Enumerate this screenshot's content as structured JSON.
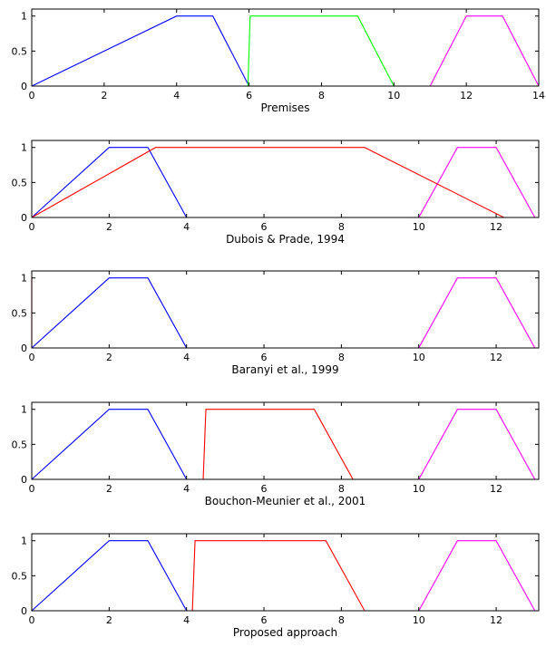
{
  "chart_data": [
    {
      "type": "line",
      "xlabel": "Premises",
      "xlim": [
        0,
        14
      ],
      "ylim": [
        0,
        1.1
      ],
      "xticks": [
        0,
        2,
        4,
        6,
        8,
        10,
        12,
        14
      ],
      "yticks": [
        0,
        0.5,
        1
      ],
      "xtick_labels": [
        "0",
        "2",
        "4",
        "6",
        "8",
        "10",
        "12",
        "14"
      ],
      "ytick_labels": [
        "0",
        "0.5",
        "1"
      ],
      "series": [
        {
          "color": "#0000ff",
          "x": [
            0,
            4,
            5,
            6,
            14
          ],
          "y": [
            0,
            1,
            1,
            0,
            0
          ]
        },
        {
          "color": "#00ff00",
          "x": [
            0,
            5.97,
            6.03,
            9,
            10,
            14
          ],
          "y": [
            0,
            0,
            1,
            1,
            0,
            0
          ]
        },
        {
          "color": "#ff00ff",
          "x": [
            0,
            11,
            12,
            13,
            14
          ],
          "y": [
            0,
            0,
            1,
            1,
            0
          ]
        }
      ]
    },
    {
      "type": "line",
      "xlabel": "Dubois & Prade, 1994",
      "xlim": [
        0,
        13.1
      ],
      "ylim": [
        0,
        1.1
      ],
      "xticks": [
        0,
        2,
        4,
        6,
        8,
        10,
        12
      ],
      "yticks": [
        0,
        0.5,
        1
      ],
      "xtick_labels": [
        "0",
        "2",
        "4",
        "6",
        "8",
        "10",
        "12"
      ],
      "ytick_labels": [
        "0",
        "0.5",
        "1"
      ],
      "series": [
        {
          "color": "#0000ff",
          "x": [
            0,
            2,
            3,
            4,
            13.1
          ],
          "y": [
            0,
            1,
            1,
            0,
            0
          ]
        },
        {
          "color": "#ff00ff",
          "x": [
            0,
            10,
            11,
            12,
            13
          ],
          "y": [
            0,
            0,
            1,
            1,
            0
          ]
        },
        {
          "color": "#ff0000",
          "x": [
            0,
            3.2,
            8.6,
            12.2
          ],
          "y": [
            0,
            1,
            1,
            0
          ]
        }
      ]
    },
    {
      "type": "line",
      "xlabel": "Baranyi et al., 1999",
      "xlim": [
        0,
        13.1
      ],
      "ylim": [
        0,
        1.1
      ],
      "xticks": [
        0,
        2,
        4,
        6,
        8,
        10,
        12
      ],
      "yticks": [
        0,
        0.5,
        1
      ],
      "xtick_labels": [
        "0",
        "2",
        "4",
        "6",
        "8",
        "10",
        "12"
      ],
      "ytick_labels": [
        "0",
        "0.5",
        "1"
      ],
      "series": [
        {
          "color": "#0000ff",
          "x": [
            0,
            2,
            3,
            4
          ],
          "y": [
            0,
            1,
            1,
            0
          ]
        },
        {
          "color": "#ff00ff",
          "x": [
            10,
            11,
            12,
            13
          ],
          "y": [
            0,
            1,
            1,
            0
          ]
        },
        {
          "color": "#ff0000",
          "x": [
            0,
            0,
            0.02,
            13.1
          ],
          "y": [
            1,
            0,
            0,
            0
          ]
        }
      ]
    },
    {
      "type": "line",
      "xlabel": "Bouchon-Meunier et al., 2001",
      "xlim": [
        0,
        13.1
      ],
      "ylim": [
        0,
        1.1
      ],
      "xticks": [
        0,
        2,
        4,
        6,
        8,
        10,
        12
      ],
      "yticks": [
        0,
        0.5,
        1
      ],
      "xtick_labels": [
        "0",
        "2",
        "4",
        "6",
        "8",
        "10",
        "12"
      ],
      "ytick_labels": [
        "0",
        "0.5",
        "1"
      ],
      "series": [
        {
          "color": "#0000ff",
          "x": [
            0,
            2,
            3,
            4
          ],
          "y": [
            0,
            1,
            1,
            0
          ]
        },
        {
          "color": "#ff00ff",
          "x": [
            10,
            11,
            12,
            13
          ],
          "y": [
            0,
            1,
            1,
            0
          ]
        },
        {
          "color": "#ff0000",
          "x": [
            0,
            4.43,
            4.5,
            7.3,
            8.3,
            13.1
          ],
          "y": [
            0,
            0,
            1,
            1,
            0,
            0
          ]
        }
      ]
    },
    {
      "type": "line",
      "xlabel": "Proposed approach",
      "xlim": [
        0,
        13.1
      ],
      "ylim": [
        0,
        1.1
      ],
      "xticks": [
        0,
        2,
        4,
        6,
        8,
        10,
        12
      ],
      "yticks": [
        0,
        0.5,
        1
      ],
      "xtick_labels": [
        "0",
        "2",
        "4",
        "6",
        "8",
        "10",
        "12"
      ],
      "ytick_labels": [
        "0",
        "0.5",
        "1"
      ],
      "series": [
        {
          "color": "#0000ff",
          "x": [
            0,
            2,
            3,
            4
          ],
          "y": [
            0,
            1,
            1,
            0
          ]
        },
        {
          "color": "#ff00ff",
          "x": [
            10,
            11,
            12,
            13
          ],
          "y": [
            0,
            1,
            1,
            0
          ]
        },
        {
          "color": "#ff0000",
          "x": [
            0,
            4.15,
            4.22,
            7.6,
            8.6,
            13.1
          ],
          "y": [
            0,
            0,
            1,
            1,
            0,
            0
          ]
        }
      ]
    }
  ]
}
